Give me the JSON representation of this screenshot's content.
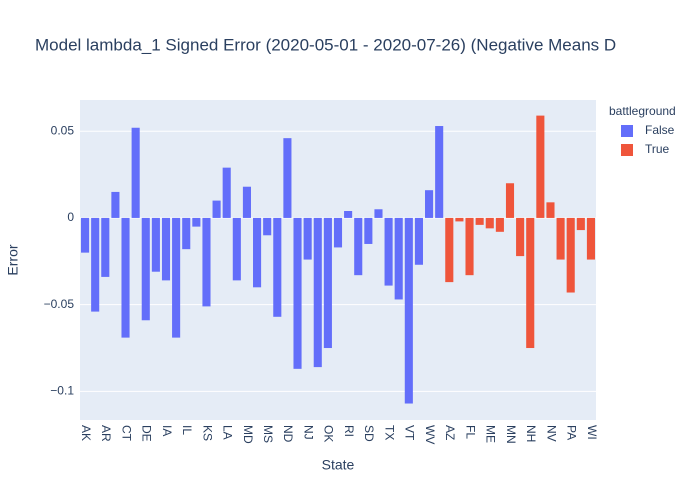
{
  "chart_data": {
    "type": "bar",
    "title": "Model lambda_1 Signed Error (2020-05-01 - 2020-07-26) (Negative Means D",
    "x_label": "State",
    "y_label": "Error",
    "legend_title": "battleground",
    "legend_position": "right",
    "categories": [
      "AK",
      null,
      "AR",
      null,
      "CT",
      null,
      "DE",
      null,
      "IA",
      null,
      "IL",
      null,
      "KS",
      null,
      "LA",
      null,
      "MD",
      null,
      "MS",
      null,
      "ND",
      null,
      "NJ",
      null,
      "OK",
      null,
      "RI",
      null,
      "SD",
      null,
      "TX",
      null,
      "VT",
      null,
      "WV",
      null,
      "AZ",
      null,
      "FL",
      null,
      "ME",
      null,
      "MN",
      null,
      "NH",
      null,
      "NV",
      null,
      "PA",
      null,
      "WI"
    ],
    "series": [
      {
        "name": "False",
        "color": "#636efa",
        "values": [
          -0.02,
          -0.054,
          -0.034,
          0.015,
          -0.069,
          0.052,
          -0.059,
          -0.031,
          -0.036,
          -0.069,
          -0.018,
          -0.005,
          -0.051,
          0.01,
          0.029,
          -0.036,
          0.018,
          -0.04,
          -0.01,
          -0.057,
          0.046,
          -0.087,
          -0.024,
          -0.086,
          -0.075,
          -0.017,
          0.004,
          -0.033,
          -0.015,
          0.005,
          -0.039,
          -0.047,
          -0.107,
          -0.027,
          0.016,
          0.053,
          null,
          null,
          null,
          null,
          null,
          null,
          null,
          null,
          null,
          null,
          null,
          null,
          null,
          null,
          null
        ]
      },
      {
        "name": "True",
        "color": "#EF553B",
        "values": [
          null,
          null,
          null,
          null,
          null,
          null,
          null,
          null,
          null,
          null,
          null,
          null,
          null,
          null,
          null,
          null,
          null,
          null,
          null,
          null,
          null,
          null,
          null,
          null,
          null,
          null,
          null,
          null,
          null,
          null,
          null,
          null,
          null,
          null,
          null,
          null,
          -0.037,
          -0.002,
          -0.033,
          -0.004,
          -0.006,
          -0.008,
          0.02,
          -0.022,
          -0.075,
          0.059,
          0.009,
          -0.024,
          -0.043,
          -0.007,
          -0.024
        ]
      }
    ],
    "ylim": [
      -0.1165,
      0.068
    ],
    "yticks": [
      {
        "value": -0.1,
        "label": "−0.1"
      },
      {
        "value": -0.05,
        "label": "−0.05"
      },
      0,
      0.05
    ],
    "grid": true
  }
}
